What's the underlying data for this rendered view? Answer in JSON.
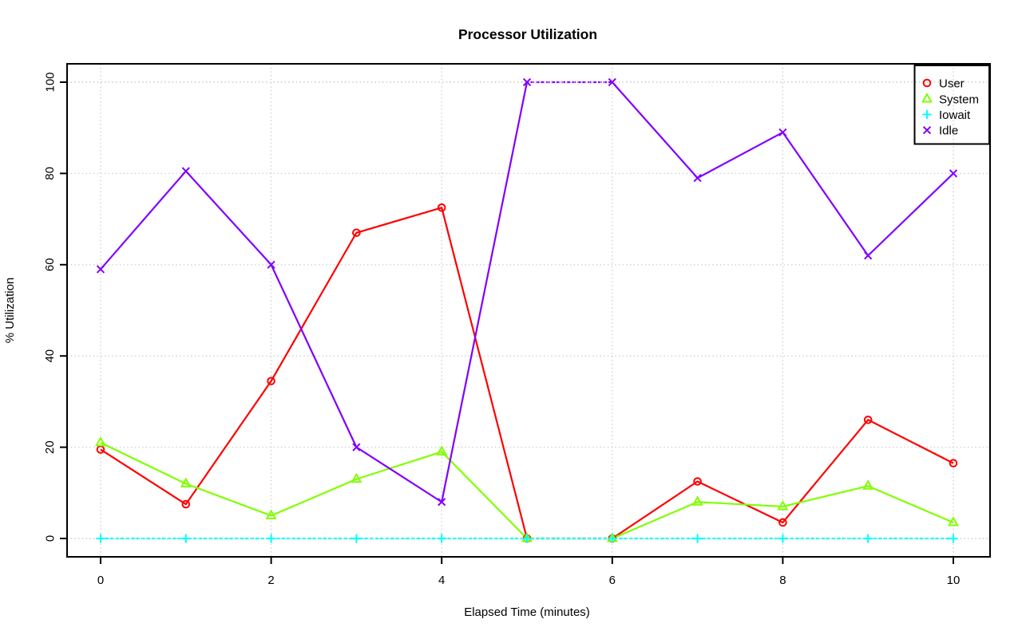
{
  "chart_data": {
    "type": "line",
    "title": "Processor Utilization",
    "xlabel": "Elapsed Time (minutes)",
    "ylabel": "% Utilization",
    "x": [
      0,
      1,
      2,
      3,
      4,
      5,
      6,
      7,
      8,
      9,
      10
    ],
    "xticks": [
      0,
      2,
      4,
      6,
      8,
      10
    ],
    "yticks": [
      0,
      20,
      40,
      60,
      80,
      100
    ],
    "xlim": [
      -0.4,
      10.4
    ],
    "ylim": [
      -4,
      104
    ],
    "grid": true,
    "grid_style": "dotted-lightgray",
    "legend_position": "top-right",
    "legend_transparent": true,
    "series": [
      {
        "name": "User",
        "color": "#FF0000",
        "marker": "circle",
        "values": [
          19.5,
          7.5,
          34.5,
          67,
          72.5,
          0,
          0,
          12.5,
          3.5,
          26,
          16.5
        ]
      },
      {
        "name": "System",
        "color": "#80FF00",
        "marker": "triangle",
        "values": [
          21,
          12,
          5,
          13,
          19,
          0,
          0,
          8,
          7,
          11.5,
          3.5
        ]
      },
      {
        "name": "Iowait",
        "color": "#00FFFF",
        "marker": "plus",
        "values": [
          0,
          0,
          0,
          0,
          0,
          0,
          0,
          0,
          0,
          0,
          0
        ]
      },
      {
        "name": "Idle",
        "color": "#8000FF",
        "marker": "x",
        "values": [
          59,
          80.5,
          60,
          20,
          8,
          100,
          100,
          79,
          89,
          62,
          80
        ]
      }
    ]
  }
}
